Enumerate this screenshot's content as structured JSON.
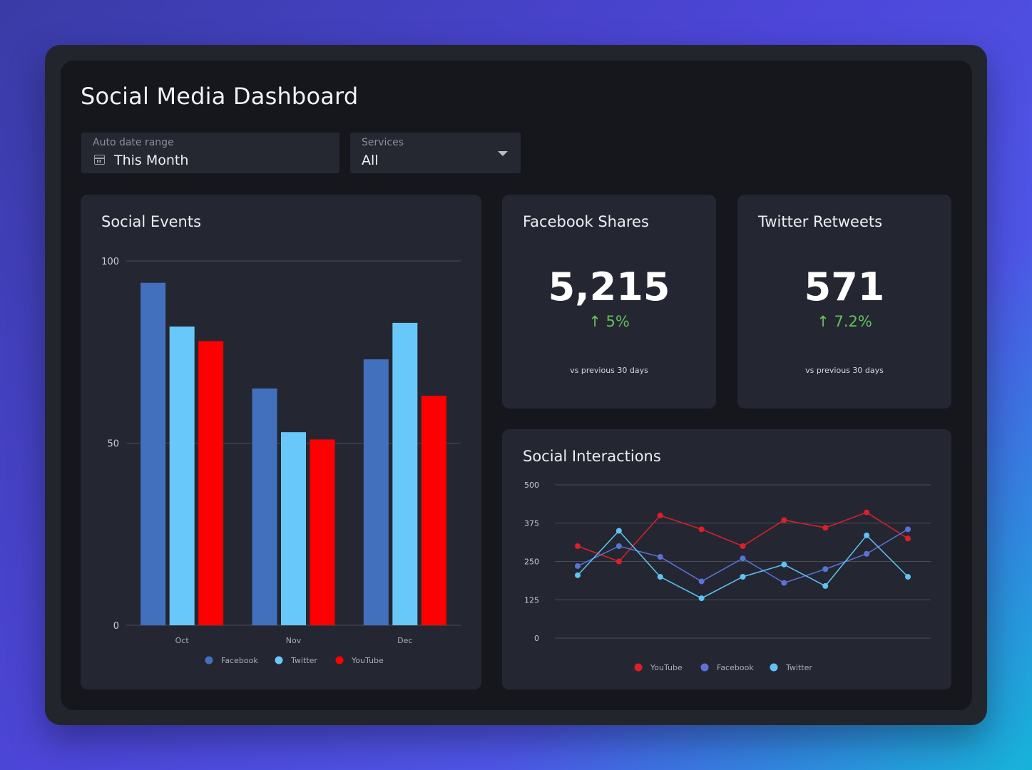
{
  "title": "Social Media Dashboard",
  "filters": {
    "date": {
      "label": "Auto date range",
      "value": "This Month",
      "icon": "calendar-icon"
    },
    "services": {
      "label": "Services",
      "value": "All",
      "icon": "chevron-down-icon"
    }
  },
  "cards": {
    "social_events": {
      "title": "Social Events"
    },
    "facebook_shares": {
      "title": "Facebook Shares",
      "value": "5,215",
      "delta": "↑ 5%",
      "note": "vs previous 30 days"
    },
    "twitter_retweets": {
      "title": "Twitter Retweets",
      "value": "571",
      "delta": "↑ 7.2%",
      "note": "vs previous 30 days"
    },
    "social_interactions": {
      "title": "Social Interactions"
    }
  },
  "colors": {
    "facebook": "#4270bd",
    "twitter": "#69c8fa",
    "youtube": "#fe0000",
    "line_facebook": "#5a73d8",
    "line_twitter": "#5fc3f5",
    "line_youtube": "#dd1f2a",
    "positive": "#64c15b"
  },
  "chart_data": [
    {
      "type": "bar",
      "title": "Social Events",
      "categories": [
        "Oct",
        "Nov",
        "Dec"
      ],
      "series": [
        {
          "name": "Facebook",
          "values": [
            94,
            65,
            73
          ]
        },
        {
          "name": "Twitter",
          "values": [
            82,
            53,
            83
          ]
        },
        {
          "name": "YouTube",
          "values": [
            78,
            51,
            63
          ]
        }
      ],
      "yticks": [
        "0",
        "50",
        "100"
      ],
      "ylim": [
        0,
        100
      ],
      "grid": true,
      "legend": "bottom"
    },
    {
      "type": "line",
      "title": "Social Interactions",
      "x": [
        1,
        2,
        3,
        4,
        5,
        6,
        7,
        8,
        9
      ],
      "series": [
        {
          "name": "YouTube",
          "values": [
            300,
            250,
            400,
            355,
            300,
            385,
            360,
            410,
            325
          ]
        },
        {
          "name": "Facebook",
          "values": [
            235,
            300,
            265,
            185,
            260,
            180,
            225,
            275,
            355
          ]
        },
        {
          "name": "Twitter",
          "values": [
            205,
            350,
            200,
            130,
            200,
            240,
            170,
            335,
            200
          ]
        }
      ],
      "yticks": [
        "0",
        "125",
        "250",
        "375",
        "500"
      ],
      "ylim": [
        0,
        500
      ],
      "grid": true,
      "legend": "bottom"
    }
  ]
}
